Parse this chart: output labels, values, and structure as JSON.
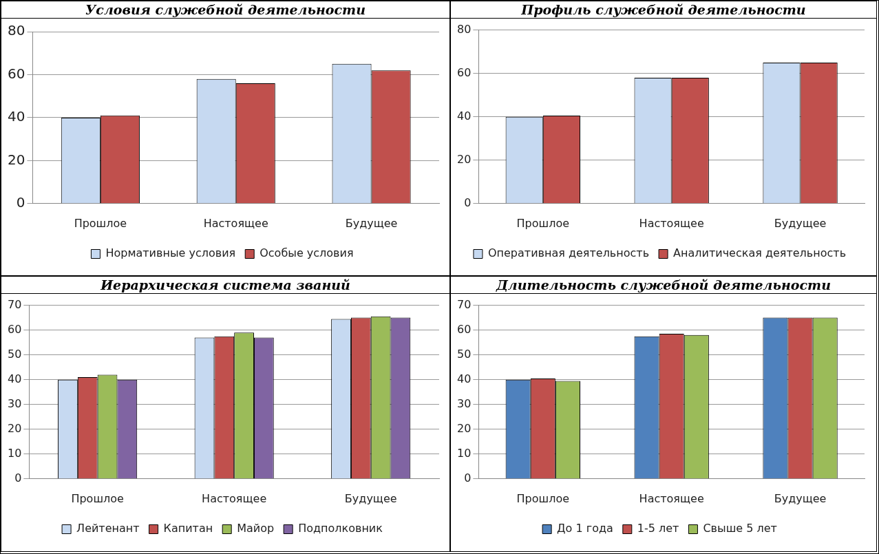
{
  "chart_data": [
    {
      "type": "bar",
      "title": "Условия служебной деятельности",
      "categories": [
        "Прошлое",
        "Настоящее",
        "Будущее"
      ],
      "series": [
        {
          "name": "Нормативные условия",
          "color": "#c6d9f1",
          "values": [
            40,
            58,
            65
          ]
        },
        {
          "name": "Особые условия",
          "color": "#c0504d",
          "values": [
            41,
            56,
            62
          ]
        }
      ],
      "ylim": [
        0,
        80
      ],
      "yticks": [
        0,
        20,
        40,
        60,
        80
      ],
      "grid": "y",
      "legend": "bottom"
    },
    {
      "type": "bar",
      "title": "Профиль служебной деятельности",
      "categories": [
        "Прошлое",
        "Настоящее",
        "Будущее"
      ],
      "series": [
        {
          "name": "Оперативная деятельность",
          "color": "#c6d9f1",
          "values": [
            40,
            58,
            65
          ]
        },
        {
          "name": "Аналитическая деятельность",
          "color": "#c0504d",
          "values": [
            40.5,
            58,
            65
          ]
        }
      ],
      "ylim": [
        0,
        80
      ],
      "yticks": [
        0,
        20,
        40,
        60,
        80
      ],
      "grid": "y",
      "legend": "bottom"
    },
    {
      "type": "bar",
      "title": "Иерархическая система званий",
      "categories": [
        "Прошлое",
        "Настоящее",
        "Будущее"
      ],
      "series": [
        {
          "name": "Лейтенант",
          "color": "#c6d9f1",
          "values": [
            40,
            57,
            64.5
          ]
        },
        {
          "name": "Капитан",
          "color": "#c0504d",
          "values": [
            41,
            57.5,
            65
          ]
        },
        {
          "name": "Майор",
          "color": "#9bbb59",
          "values": [
            42,
            59,
            65.5
          ]
        },
        {
          "name": "Подполковник",
          "color": "#8064a2",
          "values": [
            40,
            57,
            65
          ]
        }
      ],
      "ylim": [
        0,
        70
      ],
      "yticks": [
        0,
        10,
        20,
        30,
        40,
        50,
        60,
        70
      ],
      "grid": "y",
      "legend": "bottom"
    },
    {
      "type": "bar",
      "title": "Длительность служебной деятельности",
      "categories": [
        "Прошлое",
        "Настоящее",
        "Будущее"
      ],
      "series": [
        {
          "name": "До 1 года",
          "color": "#4f81bd",
          "values": [
            40,
            57.5,
            65
          ]
        },
        {
          "name": "1-5 лет",
          "color": "#c0504d",
          "values": [
            40.5,
            58.5,
            65
          ]
        },
        {
          "name": "Свыше 5 лет",
          "color": "#9bbb59",
          "values": [
            39.5,
            58,
            65
          ]
        }
      ],
      "ylim": [
        0,
        70
      ],
      "yticks": [
        0,
        10,
        20,
        30,
        40,
        50,
        60,
        70
      ],
      "grid": "y",
      "legend": "bottom"
    }
  ]
}
